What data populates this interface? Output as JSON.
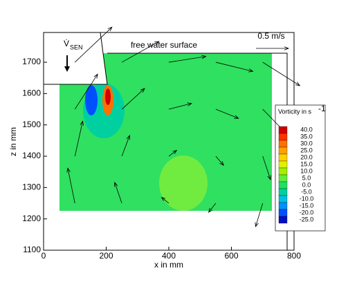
{
  "chart_data": {
    "type": "quiver",
    "x_label": "x in mm",
    "y_label": "z in mm",
    "xlim": [
      0,
      800
    ],
    "ylim": [
      1100,
      1795
    ],
    "xticks": [
      0,
      200,
      400,
      600,
      800
    ],
    "yticks": [
      1100,
      1200,
      1300,
      1400,
      1500,
      1600,
      1700
    ],
    "annotation": "free water surface",
    "gate_label": "V̇",
    "gate_subscript": "SEN",
    "reference_label": "0.5 m/s",
    "reference_value": 0.5,
    "vector_color": "#000000",
    "vectors": {
      "x": [
        100,
        250,
        400,
        550,
        700,
        100,
        250,
        400,
        550,
        700,
        100,
        250,
        400,
        550,
        700,
        100,
        250,
        400,
        550,
        700
      ],
      "z": [
        1250,
        1250,
        1250,
        1250,
        1250,
        1400,
        1400,
        1400,
        1400,
        1400,
        1550,
        1550,
        1550,
        1550,
        1550,
        1700,
        1700,
        1700,
        1700,
        1700
      ],
      "u": [
        -0.11,
        -0.11,
        -0.11,
        -0.11,
        -0.11,
        0.12,
        0.12,
        0.12,
        0.12,
        0.12,
        0.35,
        0.35,
        0.35,
        0.35,
        0.35,
        0.57,
        0.57,
        0.57,
        0.57,
        0.57
      ],
      "w": [
        0.54,
        0.32,
        0.09,
        -0.14,
        -0.36,
        0.54,
        0.32,
        0.09,
        -0.14,
        -0.36,
        0.54,
        0.32,
        0.09,
        -0.14,
        -0.36,
        0.54,
        0.32,
        0.09,
        -0.14,
        -0.36
      ]
    },
    "colorbar": {
      "title": "Vorticity in s",
      "title_superscript": "-1",
      "ticks": [
        {
          "value": 40,
          "label": "40.0"
        },
        {
          "value": 35,
          "label": "35.0"
        },
        {
          "value": 30,
          "label": "30.0"
        },
        {
          "value": 25,
          "label": "25.0"
        },
        {
          "value": 20,
          "label": "20.0"
        },
        {
          "value": 15,
          "label": "15.0"
        },
        {
          "value": 10,
          "label": "10.0"
        },
        {
          "value": 5,
          "label": "5.0"
        },
        {
          "value": 0,
          "label": "0.0"
        },
        {
          "value": -5,
          "label": "-5.0"
        },
        {
          "value": -10,
          "label": "-10.0"
        },
        {
          "value": -15,
          "label": "-15.0"
        },
        {
          "value": -20,
          "label": "-20.0"
        },
        {
          "value": -25,
          "label": "-25.0"
        }
      ],
      "colors": [
        "#d00000",
        "#ff3000",
        "#ff7000",
        "#ffa000",
        "#ffd000",
        "#e0f000",
        "#a0f000",
        "#60ec40",
        "#20e060",
        "#00d0a0",
        "#00c0e0",
        "#0090ff",
        "#0050ff",
        "#0010c0"
      ]
    }
  }
}
